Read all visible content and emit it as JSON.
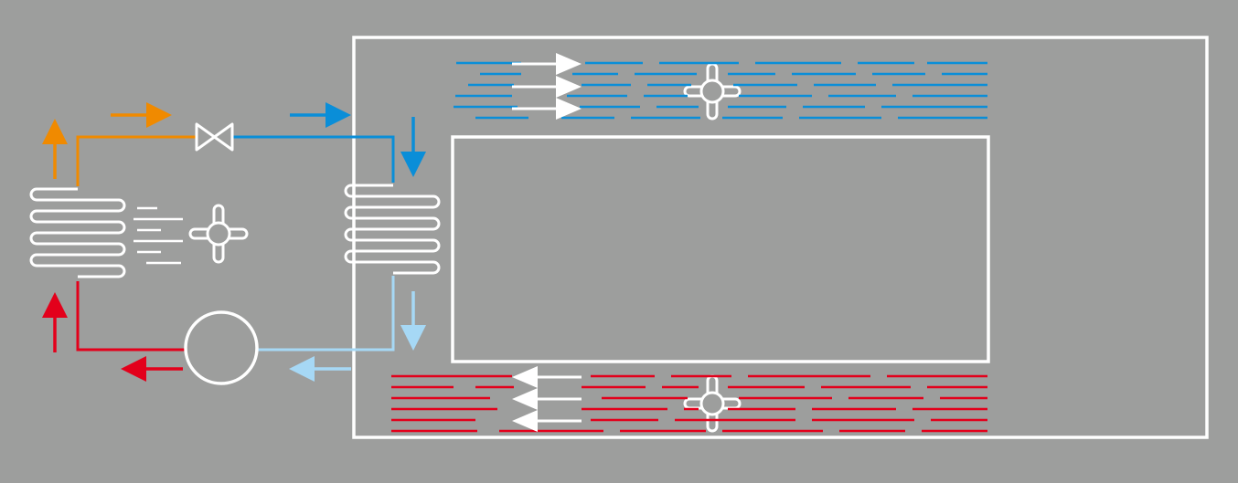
{
  "colors": {
    "background": "#9d9e9d",
    "outline": "#ffffff",
    "hot_gas": "#f08a00",
    "liquid_line": "#0a8ed8",
    "cold_return": "#a6d8f5",
    "suction_line": "#e3001b"
  },
  "components": {
    "condenser": "condenser-coil",
    "expansion_valve": "expansion-valve",
    "evaporator": "evaporator-coil",
    "compressor": "compressor",
    "fans": [
      "condenser-fan",
      "supply-fan",
      "return-fan"
    ],
    "chamber": "cabinet-enclosure"
  },
  "flow_arrows": [
    {
      "id": "hot-up",
      "color": "hot_gas",
      "direction": "up"
    },
    {
      "id": "hot-right",
      "color": "hot_gas",
      "direction": "right"
    },
    {
      "id": "liquid-right",
      "color": "liquid_line",
      "direction": "right"
    },
    {
      "id": "liquid-down",
      "color": "liquid_line",
      "direction": "down"
    },
    {
      "id": "cold-down",
      "color": "cold_return",
      "direction": "down"
    },
    {
      "id": "cold-left",
      "color": "cold_return",
      "direction": "left"
    },
    {
      "id": "suction-left",
      "color": "suction_line",
      "direction": "left"
    },
    {
      "id": "suction-up",
      "color": "suction_line",
      "direction": "up"
    },
    {
      "id": "supply-air",
      "color": "outline",
      "direction": "right",
      "count": 3
    },
    {
      "id": "return-air",
      "color": "outline",
      "direction": "left",
      "count": 3
    }
  ]
}
